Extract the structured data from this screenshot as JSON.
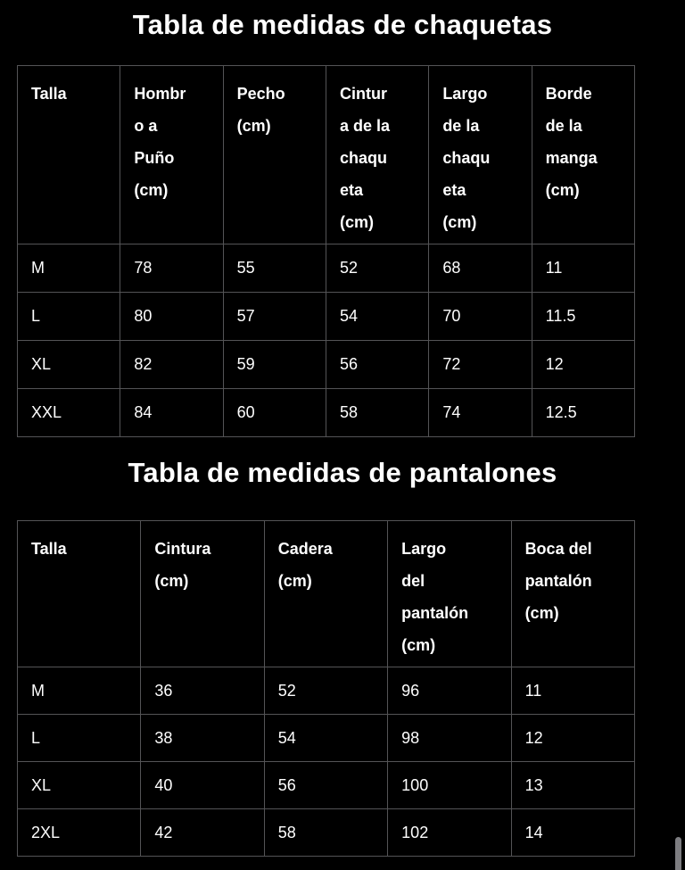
{
  "page": {
    "background_color": "#000000",
    "text_color": "#ffffff",
    "border_color": "#545456",
    "scrollbar_color": "#7d7d81"
  },
  "jackets": {
    "title": "Tabla de medidas de chaquetas",
    "columns": [
      "Talla",
      "Hombr\no a\nPuño\n(cm)",
      "Pecho\n(cm)",
      "Cintur\na de la\nchaqu\neta\n(cm)",
      "Largo\nde la\nchaqu\neta\n(cm)",
      "Borde\nde la\nmanga\n(cm)"
    ],
    "rows": [
      [
        "M",
        "78",
        "55",
        "52",
        "68",
        "11"
      ],
      [
        "L",
        "80",
        "57",
        "54",
        "70",
        "11.5"
      ],
      [
        "XL",
        "82",
        "59",
        "56",
        "72",
        "12"
      ],
      [
        "XXL",
        "84",
        "60",
        "58",
        "74",
        "12.5"
      ]
    ]
  },
  "pants": {
    "title": "Tabla de medidas de pantalones",
    "columns": [
      "Talla",
      "Cintura\n(cm)",
      "Cadera\n(cm)",
      "Largo\ndel\npantalón\n(cm)",
      "Boca del\npantalón\n(cm)"
    ],
    "rows": [
      [
        "M",
        "36",
        "52",
        "96",
        "11"
      ],
      [
        "L",
        "38",
        "54",
        "98",
        "12"
      ],
      [
        "XL",
        "40",
        "56",
        "100",
        "13"
      ],
      [
        "2XL",
        "42",
        "58",
        "102",
        "14"
      ]
    ]
  }
}
